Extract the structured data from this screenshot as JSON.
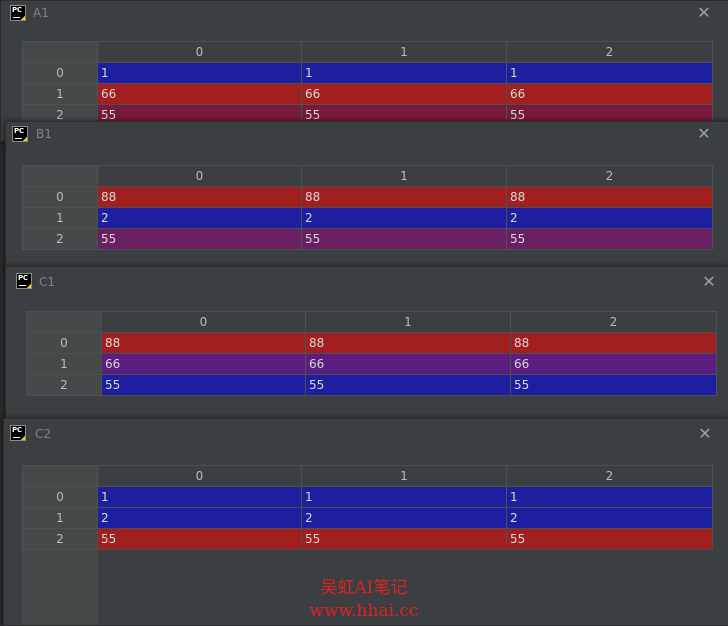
{
  "windows": [
    {
      "title": "A1",
      "columns": [
        "0",
        "1",
        "2"
      ],
      "rows": [
        {
          "index": "0",
          "cells": [
            "1",
            "1",
            "1"
          ],
          "color": "blue"
        },
        {
          "index": "1",
          "cells": [
            "66",
            "66",
            "66"
          ],
          "color": "red"
        },
        {
          "index": "2",
          "cells": [
            "55",
            "55",
            "55"
          ],
          "color": "crimson"
        }
      ]
    },
    {
      "title": "B1",
      "columns": [
        "0",
        "1",
        "2"
      ],
      "rows": [
        {
          "index": "0",
          "cells": [
            "88",
            "88",
            "88"
          ],
          "color": "red"
        },
        {
          "index": "1",
          "cells": [
            "2",
            "2",
            "2"
          ],
          "color": "blue"
        },
        {
          "index": "2",
          "cells": [
            "55",
            "55",
            "55"
          ],
          "color": "purple"
        }
      ]
    },
    {
      "title": "C1",
      "columns": [
        "0",
        "1",
        "2"
      ],
      "rows": [
        {
          "index": "0",
          "cells": [
            "88",
            "88",
            "88"
          ],
          "color": "red"
        },
        {
          "index": "1",
          "cells": [
            "66",
            "66",
            "66"
          ],
          "color": "purple2"
        },
        {
          "index": "2",
          "cells": [
            "55",
            "55",
            "55"
          ],
          "color": "blue"
        }
      ]
    },
    {
      "title": "C2",
      "columns": [
        "0",
        "1",
        "2"
      ],
      "rows": [
        {
          "index": "0",
          "cells": [
            "1",
            "1",
            "1"
          ],
          "color": "blue"
        },
        {
          "index": "1",
          "cells": [
            "2",
            "2",
            "2"
          ],
          "color": "blue"
        },
        {
          "index": "2",
          "cells": [
            "55",
            "55",
            "55"
          ],
          "color": "red"
        }
      ]
    }
  ],
  "logo_text": "PC",
  "close_glyph": "✕",
  "watermark": {
    "line1": "吴虹AI笔记",
    "line2": "www.hhai.cc"
  },
  "colors": {
    "blue": "#1e1fa0",
    "red": "#a11f1f",
    "purple": "#6a1f62",
    "purple2": "#5b1d80",
    "crimson": "#7a1a3b"
  }
}
